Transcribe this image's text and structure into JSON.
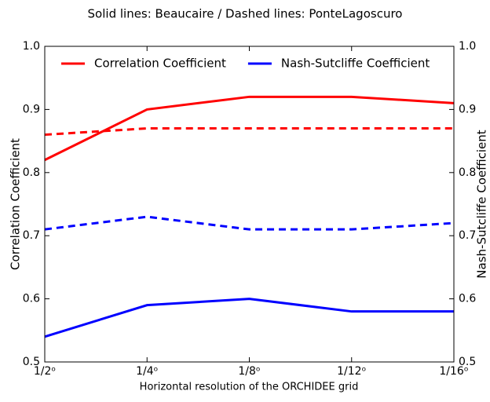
{
  "chart_data": {
    "type": "line",
    "title": "Solid lines: Beaucaire / Dashed lines: PonteLagoscuro",
    "x_label": "Horizontal resolution of the ORCHIDEE grid",
    "y_label": "Correlation Coefficient",
    "y2_label": "Nash-Sutcliffe Coefficient",
    "categories": [
      "1/2ᵒ",
      "1/4ᵒ",
      "1/8ᵒ",
      "1/12ᵒ",
      "1/16ᵒ"
    ],
    "series": [
      {
        "name": "Correlation Coefficient",
        "color": "#ff0000",
        "values": [
          0.82,
          0.9,
          0.92,
          0.92,
          0.91
        ]
      },
      {
        "color": "#ff0000",
        "dashed": true,
        "values": [
          0.86,
          0.87,
          0.87,
          0.87,
          0.87
        ]
      },
      {
        "name": "Nash-Sutcliffe Coefficient",
        "color": "#0000ff",
        "axis": "y2",
        "values": [
          0.54,
          0.59,
          0.6,
          0.58,
          0.58
        ]
      },
      {
        "color": "#0000ff",
        "dashed": true,
        "axis": "y2",
        "values": [
          0.71,
          0.73,
          0.71,
          0.71,
          0.72
        ]
      }
    ],
    "ylim": [
      0.5,
      1.0
    ],
    "yticks": [
      0.5,
      0.6,
      0.7,
      0.8,
      0.9,
      {
        "value": 1.0,
        "label": "1.0"
      }
    ],
    "y2lim": [
      0.5,
      1.0
    ],
    "y2ticks": [
      0.5,
      0.6,
      0.7,
      0.8,
      0.9,
      {
        "value": 1.0,
        "label": "1.0"
      }
    ],
    "legend": "top"
  }
}
